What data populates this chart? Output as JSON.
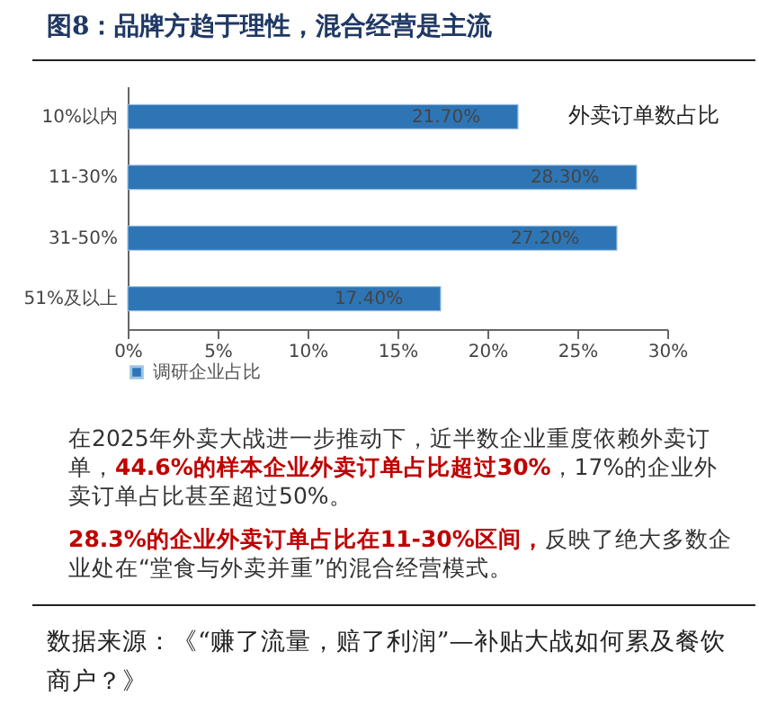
{
  "chart_data": {
    "type": "bar",
    "orientation": "horizontal",
    "title": "图8：品牌方趋于理性，混合经营是主流",
    "categories": [
      "10%以内",
      "11-30%",
      "31-50%",
      "51%及以上"
    ],
    "series": [
      {
        "name": "调研企业占比",
        "color": "#2e75b6",
        "values": [
          21.7,
          28.3,
          27.2,
          17.4
        ],
        "value_labels": [
          "21.70%",
          "28.30%",
          "27.20%",
          "17.40%"
        ]
      }
    ],
    "xlim": [
      0,
      30
    ],
    "xticks": [
      {
        "value": 0,
        "label": "0%"
      },
      {
        "value": 5,
        "label": "5%"
      },
      {
        "value": 10,
        "label": "10%"
      },
      {
        "value": 15,
        "label": "15%"
      },
      {
        "value": 20,
        "label": "20%"
      },
      {
        "value": 25,
        "label": "25%"
      },
      {
        "value": 30,
        "label": "30%"
      }
    ],
    "legend": "bottom",
    "grid": false,
    "annotations": [
      "外卖订单数占比",
      "在2025年外卖大战进一步推动下，近半数企业重度依赖外卖订单，",
      "44.6%的样本企业外卖订单占比超过30%",
      "，17%的企业外卖订单占比甚至超过50%。",
      "28.3%的企业外卖订单占比在11-30%区间，",
      "反映了绝大多数企业处在“堂食与外卖并重”的混合经营模式。",
      "数据来源：《“赚了流量，赔了利润”—补贴大战如何累及餐饮商户？》"
    ]
  }
}
